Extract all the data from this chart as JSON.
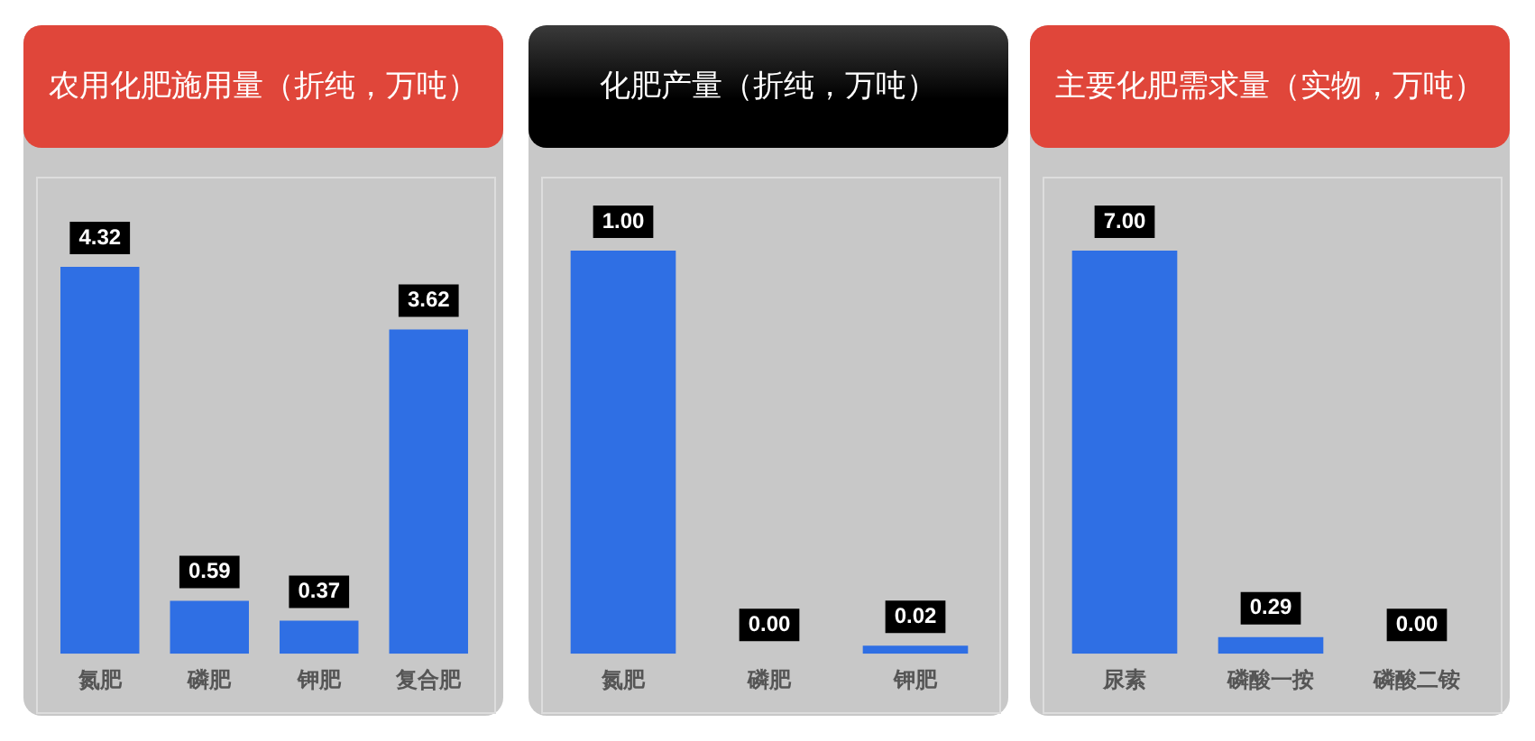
{
  "chart_data": [
    {
      "type": "bar",
      "title": "农用化肥施用量（折纯，万吨）",
      "categories": [
        "氮肥",
        "磷肥",
        "钾肥",
        "复合肥"
      ],
      "values": [
        4.32,
        0.59,
        0.37,
        3.62
      ],
      "value_labels": [
        "4.32",
        "0.59",
        "0.37",
        "3.62"
      ],
      "color": "#2f6fe4",
      "grid": false
    },
    {
      "type": "bar",
      "title": "化肥产量（折纯，万吨）",
      "categories": [
        "氮肥",
        "磷肥",
        "钾肥"
      ],
      "values": [
        1,
        0,
        0.02
      ],
      "value_labels": [
        "1.00",
        "0.00",
        "0.02"
      ],
      "color": "#2f6fe4",
      "grid": false
    },
    {
      "type": "bar",
      "title": "主要化肥需求量（实物，万吨）",
      "categories": [
        "尿素",
        "磷酸一按",
        "磷酸二铵"
      ],
      "values": [
        7,
        0.29,
        0
      ],
      "value_labels": [
        "7.00",
        "0.29",
        "0.00"
      ],
      "color": "#2f6fe4",
      "grid": false
    }
  ]
}
